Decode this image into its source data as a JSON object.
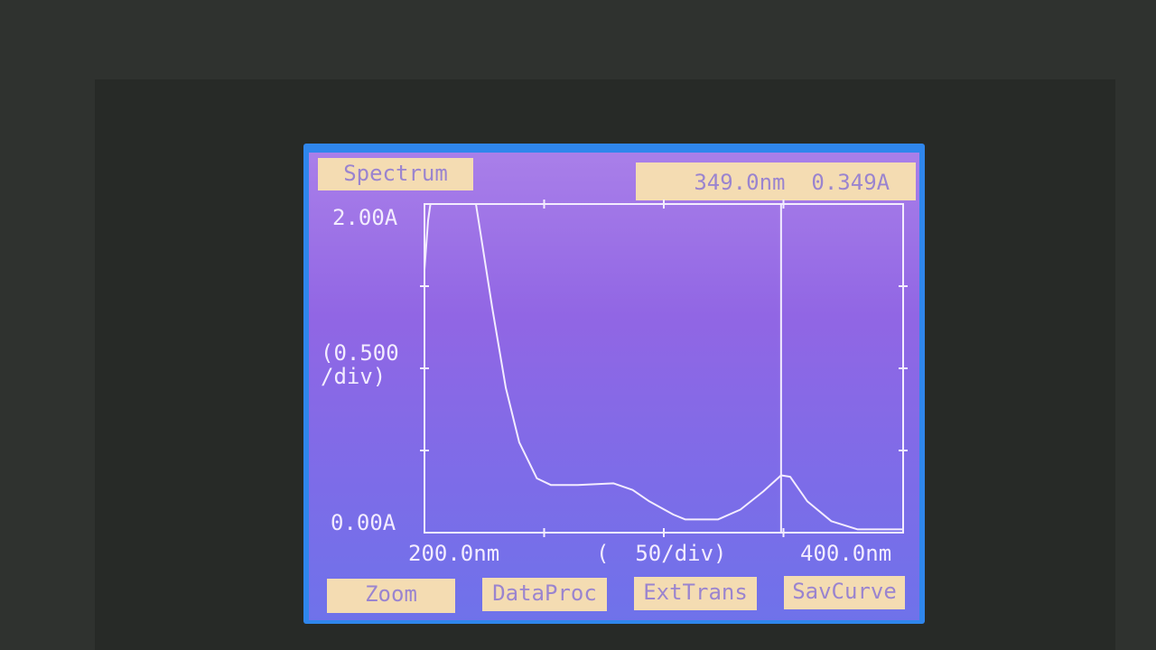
{
  "header": {
    "mode_label": "Spectrum",
    "cursor_wavelength": "349.0nm",
    "cursor_absorbance": "0.349A"
  },
  "buttons": [
    {
      "label": "Zoom"
    },
    {
      "label": "DataProc"
    },
    {
      "label": "ExtTrans"
    },
    {
      "label": "SavCurve"
    }
  ],
  "colors": {
    "screen_border": "#2f86ec",
    "background": "#9166e4",
    "trace": "#f3ecff",
    "button_bg": "#f4dcb2",
    "button_text": "#9a84cf"
  },
  "chart_data": {
    "type": "line",
    "title": "Spectrum",
    "y_top_label": "2.00A",
    "y_bottom_label": "0.00A",
    "y_scale_label": "(0.500\n/div)",
    "x_left_label": "200.0nm",
    "x_right_label": "400.0nm",
    "x_scale_label": "(  50/div)",
    "xlim": [
      200,
      400
    ],
    "ylim": [
      0,
      2
    ],
    "x_tick_step": 50,
    "y_tick_step": 0.5,
    "grid": false,
    "cursor": {
      "x": 349,
      "y": 0.349
    },
    "series": [
      {
        "x": [
          200,
          201.5,
          202.5,
          221.5,
          228.3,
          234,
          239.6,
          247,
          252.8,
          264,
          279,
          287,
          294,
          304,
          309,
          322.6,
          332,
          341.5,
          349,
          352.8,
          360,
          370,
          381,
          400
        ],
        "y": [
          1.6,
          1.9,
          2.0,
          2.0,
          1.37,
          0.88,
          0.55,
          0.33,
          0.29,
          0.29,
          0.3,
          0.26,
          0.19,
          0.11,
          0.08,
          0.08,
          0.14,
          0.25,
          0.349,
          0.34,
          0.19,
          0.07,
          0.02,
          0.02
        ]
      }
    ]
  }
}
